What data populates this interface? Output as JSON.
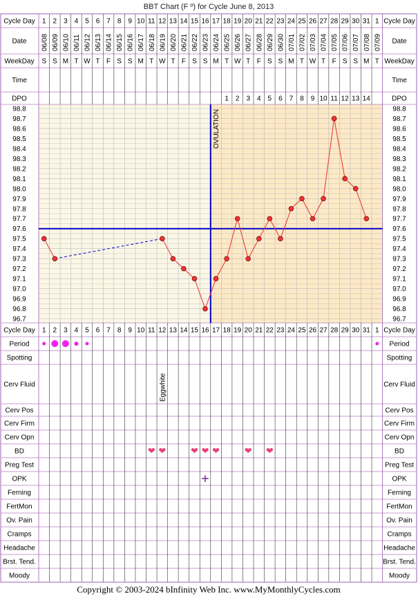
{
  "title": "BBT Chart (F º) for Cycle June 8, 2013",
  "copyright": "Copyright © 2003-2024 bInfinity Web Inc.     www.MyMonthlyCycles.com",
  "colors": {
    "border": "#b07cc0",
    "pre_bg": "#fbf7e6",
    "post_bg": "#fde9c5",
    "grid": "#bbbbbb",
    "temp_line": "#e83030",
    "dot_fill": "#ee3333",
    "coverline": "#0000cc",
    "period": "#ee22ee",
    "heart": "#e8407a",
    "opk": "#8b3aa8"
  },
  "row_labels": {
    "cycle_day": "Cycle Day",
    "date": "Date",
    "weekday": "WeekDay",
    "time": "Time",
    "dpo": "DPO",
    "period": "Period",
    "spotting": "Spotting",
    "cerv_fluid": "Cerv Fluid",
    "cerv_pos": "Cerv Pos",
    "cerv_firm": "Cerv Firm",
    "cerv_opn": "Cerv Opn",
    "bd": "BD",
    "preg_test": "Preg Test",
    "opk": "OPK",
    "ferning": "Ferning",
    "fertmon": "FertMon",
    "ov_pain": "Ov. Pain",
    "cramps": "Cramps",
    "headache": "Headache",
    "brst_tend": "Brst. Tend.",
    "moody": "Moody"
  },
  "ovulation_label": "OVULATION",
  "cerv_fluid_note": "Eggwhite",
  "opk_symbol": "+",
  "heart_symbol": "❤",
  "chart_data": {
    "type": "line",
    "title": "BBT Chart (F º) for Cycle June 8, 2013",
    "cycle_days": [
      "1",
      "2",
      "3",
      "4",
      "5",
      "6",
      "7",
      "8",
      "9",
      "10",
      "11",
      "12",
      "13",
      "14",
      "15",
      "16",
      "17",
      "18",
      "19",
      "20",
      "21",
      "22",
      "23",
      "24",
      "25",
      "26",
      "27",
      "28",
      "29",
      "30",
      "31",
      "1"
    ],
    "dates": [
      "06/08",
      "06/09",
      "06/10",
      "06/11",
      "06/12",
      "06/13",
      "06/14",
      "06/15",
      "06/16",
      "06/17",
      "06/18",
      "06/19",
      "06/20",
      "06/21",
      "06/22",
      "06/23",
      "06/24",
      "06/25",
      "06/26",
      "06/27",
      "06/28",
      "06/29",
      "06/30",
      "07/01",
      "07/02",
      "07/03",
      "07/04",
      "07/05",
      "07/06",
      "07/07",
      "07/08",
      "07/09"
    ],
    "weekdays": [
      "S",
      "S",
      "M",
      "T",
      "W",
      "T",
      "F",
      "S",
      "S",
      "M",
      "T",
      "W",
      "T",
      "F",
      "S",
      "S",
      "M",
      "T",
      "W",
      "T",
      "F",
      "S",
      "S",
      "M",
      "T",
      "W",
      "T",
      "F",
      "S",
      "S",
      "M",
      "T"
    ],
    "dpo": [
      "",
      "",
      "",
      "",
      "",
      "",
      "",
      "",
      "",
      "",
      "",
      "",
      "",
      "",
      "",
      "",
      "",
      "1",
      "2",
      "3",
      "4",
      "5",
      "6",
      "7",
      "8",
      "9",
      "10",
      "11",
      "12",
      "13",
      "14",
      ""
    ],
    "y_ticks": [
      "98.8",
      "98.7",
      "98.6",
      "98.5",
      "98.4",
      "98.3",
      "98.2",
      "98.1",
      "98.0",
      "97.9",
      "97.8",
      "97.7",
      "97.6",
      "97.5",
      "97.4",
      "97.3",
      "97.2",
      "97.1",
      "97.0",
      "96.9",
      "96.8",
      "96.7"
    ],
    "ylim": [
      96.7,
      98.8
    ],
    "temps": [
      97.5,
      97.3,
      null,
      null,
      null,
      null,
      null,
      null,
      null,
      null,
      null,
      97.5,
      97.3,
      97.2,
      97.1,
      96.8,
      97.1,
      97.3,
      97.7,
      97.3,
      97.5,
      97.7,
      97.5,
      97.8,
      97.9,
      97.7,
      97.9,
      98.7,
      98.1,
      98.0,
      97.7,
      null
    ],
    "coverline": 97.6,
    "ovulation_day": 17,
    "period": [
      1,
      3,
      3,
      2,
      1,
      0,
      0,
      0,
      0,
      0,
      0,
      0,
      0,
      0,
      0,
      0,
      0,
      0,
      0,
      0,
      0,
      0,
      0,
      0,
      0,
      0,
      0,
      0,
      0,
      0,
      0,
      1
    ],
    "bd_days": [
      11,
      12,
      15,
      16,
      17,
      20,
      22
    ],
    "opk_days": [
      16
    ],
    "eggwhite_day": 12
  }
}
